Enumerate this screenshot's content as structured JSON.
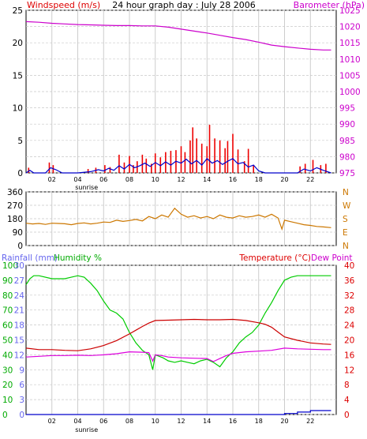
{
  "chart_data": [
    {
      "type": "line",
      "title": "24 hour graph day : July 28 2006",
      "ylabel": "Windspeed (m/s)",
      "y2label": "Barometer (hPa)",
      "xlim": [
        0,
        24
      ],
      "ylim": [
        0,
        25
      ],
      "y2lim": [
        975,
        1025
      ],
      "grid": true,
      "x_ticks": [
        2,
        4,
        6,
        8,
        10,
        12,
        14,
        16,
        18,
        20,
        22
      ],
      "x_tick_labels": [
        "02",
        "04",
        "06",
        "08",
        "10",
        "12",
        "14",
        "16",
        "18",
        "20",
        "22"
      ],
      "annotation": "sunrise",
      "annotation_x": 4.5,
      "y_ticks": [
        0,
        2.5,
        5,
        7.5,
        10,
        12.5,
        15,
        17.5,
        20,
        22.5,
        25
      ],
      "y_tick_labels": [
        "0",
        "",
        "5",
        "",
        "10",
        "",
        "15",
        "",
        "20",
        "",
        "25"
      ],
      "y2_ticks": [
        975,
        980,
        985,
        990,
        995,
        1000,
        1005,
        1010,
        1015,
        1020,
        1025
      ],
      "y2_tick_labels": [
        "975",
        "980",
        "985",
        "990",
        "995",
        "1000",
        "1005",
        "1010",
        "1015",
        "1020",
        "1025"
      ],
      "series": [
        {
          "name": "Barometer",
          "axis": "right",
          "color": "#cc00cc",
          "x": [
            0,
            1,
            2,
            3,
            4,
            5,
            6,
            7,
            8,
            9,
            10,
            11,
            12,
            13,
            14,
            15,
            16,
            17,
            18,
            19,
            20,
            21,
            22,
            23,
            23.6
          ],
          "y": [
            1021.5,
            1021.3,
            1021.0,
            1020.8,
            1020.6,
            1020.5,
            1020.4,
            1020.3,
            1020.3,
            1020.2,
            1020.2,
            1019.8,
            1019.2,
            1018.6,
            1018.0,
            1017.3,
            1016.6,
            1016.0,
            1015.2,
            1014.3,
            1013.8,
            1013.4,
            1013.0,
            1012.8,
            1012.8
          ]
        },
        {
          "name": "Wind gust",
          "axis": "left",
          "color": "#ee0000",
          "render": "bars",
          "x": [
            0.2,
            1.8,
            2.1,
            4.8,
            5.4,
            6.1,
            6.5,
            7.2,
            7.6,
            8.0,
            8.3,
            8.6,
            9.0,
            9.3,
            9.7,
            10.0,
            10.4,
            10.8,
            11.2,
            11.6,
            12.0,
            12.3,
            12.7,
            12.9,
            13.2,
            13.6,
            14.0,
            14.2,
            14.6,
            15.0,
            15.4,
            15.6,
            16.0,
            16.4,
            16.9,
            17.2,
            17.6,
            21.2,
            21.6,
            22.2,
            22.8,
            23.2
          ],
          "y": [
            0.8,
            1.6,
            1.2,
            0.6,
            0.8,
            1.2,
            0.9,
            2.8,
            1.6,
            2.6,
            1.2,
            1.8,
            2.8,
            2.2,
            1.4,
            3.0,
            2.4,
            3.2,
            3.4,
            3.5,
            4.1,
            3.2,
            5.0,
            7.0,
            5.3,
            4.5,
            4.1,
            7.4,
            5.3,
            5.0,
            3.8,
            4.9,
            6.0,
            3.6,
            1.8,
            3.7,
            1.2,
            1.0,
            1.4,
            2.0,
            1.2,
            1.4
          ]
        },
        {
          "name": "Wind average",
          "axis": "left",
          "color": "#0000cc",
          "x": [
            0,
            0.3,
            0.6,
            1.5,
            1.9,
            2.3,
            2.8,
            4.0,
            5.0,
            5.6,
            6.0,
            6.4,
            6.8,
            7.2,
            7.6,
            8.0,
            8.4,
            8.8,
            9.2,
            9.6,
            10.0,
            10.4,
            10.8,
            11.2,
            11.6,
            12.0,
            12.4,
            12.8,
            13.2,
            13.6,
            14.0,
            14.4,
            14.8,
            15.2,
            15.6,
            16.0,
            16.4,
            16.8,
            17.2,
            17.6,
            18.0,
            18.5,
            21.0,
            21.5,
            22.0,
            22.5,
            23.0,
            23.6
          ],
          "y": [
            0,
            0.4,
            0,
            0,
            0.8,
            0.5,
            0,
            0,
            0.2,
            0.5,
            0.3,
            0.7,
            0.4,
            1.1,
            0.6,
            1.3,
            0.8,
            1.1,
            1.5,
            1.0,
            1.6,
            1.1,
            1.7,
            1.2,
            1.8,
            1.5,
            2.1,
            1.4,
            1.9,
            1.2,
            2.2,
            1.5,
            1.9,
            1.3,
            1.8,
            2.2,
            1.4,
            1.6,
            0.9,
            1.2,
            0.3,
            0,
            0,
            0.6,
            0.3,
            0.8,
            0.4,
            0
          ]
        }
      ]
    },
    {
      "type": "line",
      "title": "",
      "xlim": [
        0,
        24
      ],
      "ylim": [
        0,
        360
      ],
      "grid": true,
      "y_ticks": [
        0,
        90,
        180,
        270,
        360
      ],
      "y_tick_labels": [
        "0",
        "90",
        "180",
        "270",
        "360"
      ],
      "y2_ticks": [
        0,
        90,
        180,
        270,
        360
      ],
      "y2_tick_labels": [
        "N",
        "E",
        "S",
        "W",
        "N"
      ],
      "series": [
        {
          "name": "Wind direction",
          "color": "#cc7700",
          "x": [
            0,
            0.5,
            1,
            1.5,
            2,
            2.5,
            3,
            3.5,
            4,
            4.5,
            5,
            5.5,
            6,
            6.5,
            7,
            7.5,
            8,
            8.5,
            9,
            9.5,
            10,
            10.5,
            11,
            11.5,
            12,
            12.5,
            13,
            13.5,
            14,
            14.5,
            15,
            15.5,
            16,
            16.5,
            17,
            17.5,
            18,
            18.5,
            19,
            19.5,
            19.8,
            20,
            20.5,
            21,
            21.5,
            22,
            22.5,
            23,
            23.6
          ],
          "y": [
            150,
            145,
            148,
            142,
            150,
            148,
            146,
            140,
            148,
            152,
            145,
            150,
            158,
            155,
            170,
            162,
            168,
            175,
            165,
            195,
            180,
            205,
            190,
            250,
            210,
            190,
            200,
            185,
            195,
            180,
            205,
            190,
            185,
            200,
            190,
            195,
            205,
            190,
            210,
            185,
            110,
            170,
            160,
            150,
            140,
            135,
            128,
            125,
            120
          ]
        }
      ]
    },
    {
      "type": "line",
      "title": "",
      "ylabel_rain": "Rainfall (mm)",
      "ylabel_hum": "Humidity %",
      "y2label": "Temperature (°C)",
      "y3label": "Dew Point",
      "annotation": "sunrise",
      "annotation_x": 4.5,
      "xlim": [
        0,
        24
      ],
      "hum_lim": [
        0,
        100
      ],
      "rain_lim": [
        0,
        30
      ],
      "temp_lim": [
        0,
        40
      ],
      "grid": true,
      "x_ticks": [
        2,
        4,
        6,
        8,
        10,
        12,
        14,
        16,
        18,
        20,
        22
      ],
      "x_tick_labels": [
        "02",
        "04",
        "06",
        "08",
        "10",
        "12",
        "14",
        "16",
        "18",
        "20",
        "22"
      ],
      "hum_ticks": [
        0,
        10,
        20,
        30,
        40,
        50,
        60,
        70,
        80,
        90,
        100
      ],
      "hum_tick_labels": [
        "0",
        "10",
        "20",
        "30",
        "40",
        "50",
        "60",
        "70",
        "80",
        "90",
        "100"
      ],
      "rain_ticks": [
        0,
        3,
        6,
        9,
        12,
        15,
        18,
        21,
        24,
        27,
        30
      ],
      "rain_tick_labels": [
        "0",
        "3",
        "6",
        "9",
        "12",
        "15",
        "18",
        "21",
        "24",
        "27",
        "30"
      ],
      "temp_ticks": [
        0,
        4,
        8,
        12,
        16,
        20,
        24,
        28,
        32,
        36,
        40
      ],
      "temp_tick_labels": [
        "0",
        "4",
        "8",
        "12",
        "16",
        "20",
        "24",
        "28",
        "32",
        "36",
        "40"
      ],
      "series": [
        {
          "name": "Humidity",
          "axis": "humidity",
          "color": "#00cc00",
          "x": [
            0,
            0.3,
            0.6,
            1,
            2,
            3,
            3.5,
            4,
            4.5,
            5,
            5.5,
            6,
            6.5,
            7,
            7.5,
            8,
            8.5,
            9,
            9.5,
            9.8,
            10,
            10.3,
            10.6,
            11,
            11.5,
            12,
            12.5,
            13,
            13.5,
            14,
            14.5,
            15,
            15.5,
            16,
            16.5,
            17,
            17.5,
            18,
            18.5,
            19,
            19.5,
            20,
            20.5,
            21,
            21.5,
            22,
            23,
            23.6
          ],
          "y": [
            87,
            91,
            93,
            93,
            91,
            91,
            92,
            93,
            92,
            88,
            83,
            76,
            70,
            68,
            64,
            55,
            48,
            43,
            40,
            30,
            40,
            39,
            38,
            36,
            35,
            36,
            35,
            34,
            36,
            37,
            35,
            32,
            38,
            42,
            48,
            52,
            55,
            60,
            68,
            75,
            83,
            90,
            92,
            93,
            93,
            93,
            93,
            93
          ]
        },
        {
          "name": "Temperature",
          "axis": "temperature",
          "color": "#cc0000",
          "x": [
            0,
            1,
            2,
            3,
            4,
            5,
            6,
            7,
            8,
            8.5,
            9,
            9.5,
            10,
            11,
            12,
            13,
            14,
            15,
            16,
            17,
            18,
            18.5,
            19,
            19.5,
            20,
            21,
            22,
            23,
            23.6
          ],
          "y": [
            17.8,
            17.4,
            17.4,
            17.2,
            17.1,
            17.6,
            18.5,
            19.8,
            21.6,
            22.6,
            23.6,
            24.5,
            25.2,
            25.3,
            25.4,
            25.5,
            25.4,
            25.4,
            25.5,
            25.2,
            24.6,
            24.2,
            23.4,
            22.1,
            20.8,
            19.9,
            19.2,
            18.9,
            18.8
          ]
        },
        {
          "name": "Dew Point",
          "axis": "temperature",
          "color": "#dd00dd",
          "x": [
            0,
            1,
            2,
            3,
            4,
            5,
            6,
            7,
            8,
            9,
            9.5,
            9.8,
            10,
            10.5,
            11,
            12,
            13,
            14,
            14.5,
            15,
            15.5,
            16,
            17,
            18,
            19,
            20,
            21,
            22,
            23,
            23.6
          ],
          "y": [
            15.4,
            15.6,
            15.8,
            15.8,
            15.9,
            15.8,
            16.0,
            16.3,
            16.8,
            16.7,
            16.6,
            14.3,
            16.0,
            15.8,
            15.4,
            15.2,
            15.1,
            15.0,
            14.2,
            15.0,
            15.8,
            16.4,
            16.8,
            17.0,
            17.2,
            17.8,
            17.6,
            17.5,
            17.4,
            17.4
          ]
        },
        {
          "name": "Rainfall",
          "axis": "rainfall",
          "color": "#0000cc",
          "step": true,
          "x": [
            0,
            19.9,
            20.0,
            20.9,
            21.0,
            21.9,
            22.0,
            23.6
          ],
          "y": [
            0,
            0,
            0.2,
            0.2,
            0.5,
            0.5,
            0.8,
            0.8
          ]
        }
      ]
    }
  ]
}
